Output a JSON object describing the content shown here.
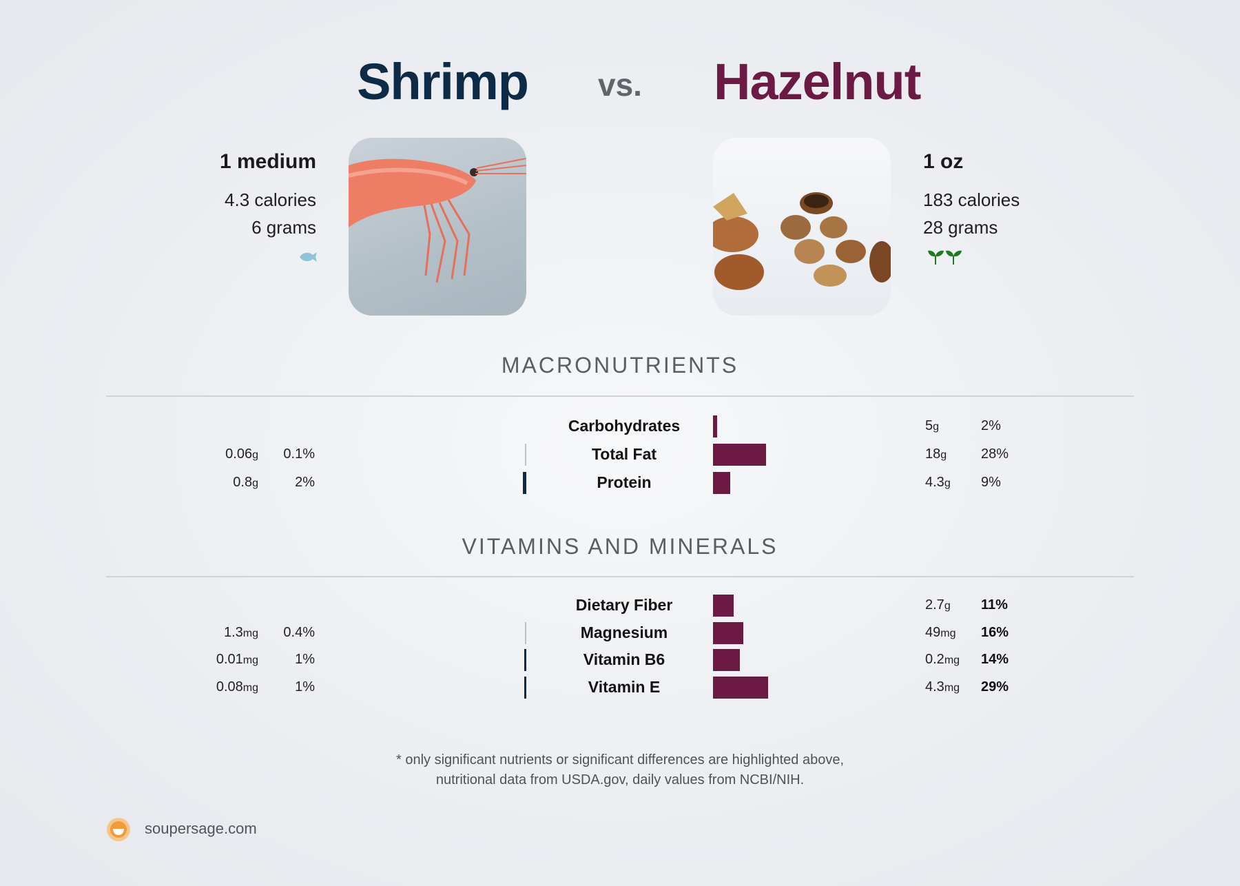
{
  "header": {
    "left_food": "Shrimp",
    "vs": "vs.",
    "right_food": "Hazelnut"
  },
  "colors": {
    "left_accent": "#0d2b47",
    "right_accent": "#6b1a43",
    "fish_icon": "#8fc3d8",
    "sprout_icon": "#1f7a1f"
  },
  "left": {
    "serving": "1 medium",
    "calories": "4.3 calories",
    "grams": "6 grams",
    "diet_icon": "fish-icon"
  },
  "right": {
    "serving": "1 oz",
    "calories": "183 calories",
    "grams": "28 grams",
    "diet_icon": "sprout-icon"
  },
  "sections": {
    "macros_title": "MACRONUTRIENTS",
    "vitamins_title": "VITAMINS AND MINERALS"
  },
  "chart_data": [
    {
      "type": "bar",
      "title": "MACRONUTRIENTS",
      "categories": [
        "Carbohydrates",
        "Total Fat",
        "Protein"
      ],
      "series": [
        {
          "name": "Shrimp",
          "amounts": [
            "",
            "0.06",
            "0.8"
          ],
          "units": [
            "",
            "g",
            "g"
          ],
          "daily_value_labels": [
            "",
            "0.1%",
            "2%"
          ],
          "daily_value_pct": [
            0,
            0.1,
            2
          ]
        },
        {
          "name": "Hazelnut",
          "amounts": [
            "5",
            "18",
            "4.3"
          ],
          "units": [
            "g",
            "g",
            "g"
          ],
          "daily_value_labels": [
            "2%",
            "28%",
            "9%"
          ],
          "daily_value_pct": [
            2,
            28,
            9
          ]
        }
      ]
    },
    {
      "type": "bar",
      "title": "VITAMINS AND MINERALS",
      "categories": [
        "Dietary Fiber",
        "Magnesium",
        "Vitamin B6",
        "Vitamin E"
      ],
      "series": [
        {
          "name": "Shrimp",
          "amounts": [
            "",
            "1.3",
            "0.01",
            "0.08"
          ],
          "units": [
            "",
            "mg",
            "mg",
            "mg"
          ],
          "daily_value_labels": [
            "",
            "0.4%",
            "1%",
            "1%"
          ],
          "daily_value_pct": [
            0,
            0.4,
            1,
            1
          ]
        },
        {
          "name": "Hazelnut",
          "amounts": [
            "2.7",
            "49",
            "0.2",
            "4.3"
          ],
          "units": [
            "g",
            "mg",
            "mg",
            "mg"
          ],
          "daily_value_labels": [
            "11%",
            "16%",
            "14%",
            "29%"
          ],
          "daily_value_pct": [
            11,
            16,
            14,
            29
          ]
        }
      ]
    }
  ],
  "footer": {
    "note_line1": "* only significant nutrients or significant differences are highlighted above,",
    "note_line2": "nutritional data from USDA.gov, daily values from NCBI/NIH.",
    "brand": "soupersage.com"
  }
}
